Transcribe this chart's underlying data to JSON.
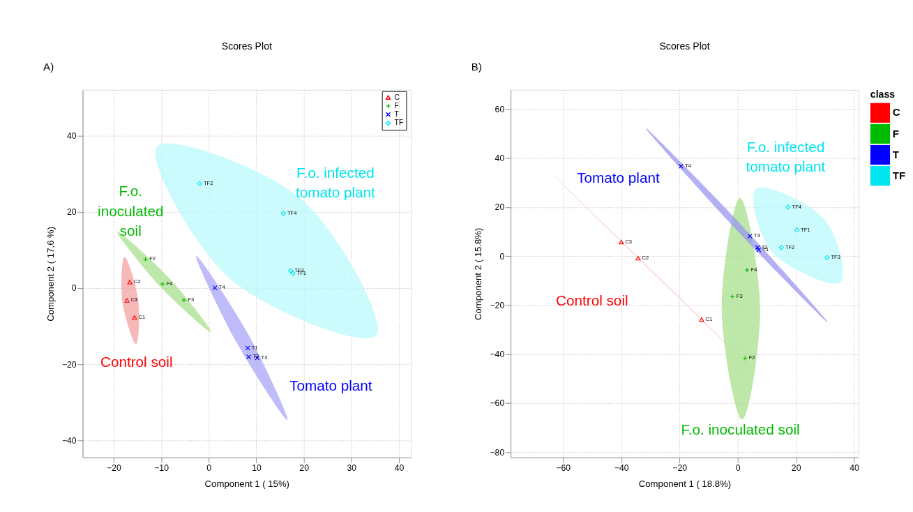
{
  "chart_data": [
    {
      "type": "scatter",
      "title": "Scores Plot",
      "xlabel": "Component 1 ( 15%)",
      "ylabel": "Component 2 ( 17.6 %)",
      "xlim": [
        -26.5,
        42.5
      ],
      "ylim": [
        -44.4,
        52
      ],
      "xticks": [
        -20,
        -10,
        0,
        10,
        20,
        30,
        40
      ],
      "yticks": [
        -40,
        -20,
        0,
        20,
        40
      ],
      "grid": true,
      "legend": "top right",
      "series": [
        {
          "type": "area",
          "color": "#f4a0a0",
          "x": [
            -17.7,
            -14.9,
            -15.3,
            -18.1
          ],
          "values": [
            8.1,
            -3.0,
            -14.6,
            -3.5
          ]
        },
        {
          "type": "area",
          "color": "#a8e08c",
          "x": [
            -19.2,
            -8.5,
            0.4,
            -10.3
          ],
          "values": [
            14.8,
            2.8,
            -11.4,
            0.6
          ]
        },
        {
          "type": "area",
          "color": "#a9a6f7",
          "x": [
            -2.6,
            8.25,
            16.5,
            5.75
          ],
          "values": [
            8.4,
            -12.1,
            -34.5,
            -13.9
          ]
        },
        {
          "type": "area",
          "color": "#b9f9fb",
          "x": [
            -10.8,
            19.5,
            35.1,
            4.8
          ],
          "values": [
            37.1,
            23.2,
            -12.4,
            2.2
          ]
        },
        {
          "name": "C",
          "marker": "triangle",
          "color": "#ff0000",
          "x": [
            -15.6,
            -16.6,
            -17.2
          ],
          "values": [
            -7.7,
            1.6,
            -3.2
          ]
        },
        {
          "name": "F",
          "marker": "cross",
          "color": "#00bb00",
          "x": [
            -13.3,
            -5.2,
            -9.7
          ],
          "values": [
            7.6,
            -3.1,
            1.1
          ]
        },
        {
          "name": "T",
          "marker": "x",
          "color": "#0000ff",
          "x": [
            8.2,
            8.4,
            10.2,
            1.3
          ],
          "values": [
            -15.7,
            -18.0,
            -18.3,
            0.1
          ]
        },
        {
          "name": "TF",
          "marker": "diamond",
          "color": "#00e5ee",
          "x": [
            17.7,
            -1.9,
            17.2,
            15.7
          ],
          "values": [
            3.9,
            27.4,
            4.6,
            19.6
          ]
        }
      ],
      "annotations": [
        "A)",
        {
          "text": "C1",
          "x": -15.6,
          "y": -7.7
        },
        {
          "text": "C2",
          "x": -16.6,
          "y": 1.6
        },
        {
          "text": "C3",
          "x": -17.2,
          "y": -3.2
        },
        {
          "text": "F2",
          "x": -13.3,
          "y": 7.6
        },
        {
          "text": "F3",
          "x": -5.2,
          "y": -3.1
        },
        {
          "text": "F4",
          "x": -9.7,
          "y": 1.1
        },
        {
          "text": "T1",
          "x": 8.2,
          "y": -15.7
        },
        {
          "text": "T2",
          "x": 8.4,
          "y": -18.0
        },
        {
          "text": "T3",
          "x": 10.2,
          "y": -18.3
        },
        {
          "text": "T4",
          "x": 1.3,
          "y": 0.1
        },
        {
          "text": "TF1",
          "x": 17.7,
          "y": 3.9
        },
        {
          "text": "TF2",
          "x": -1.9,
          "y": 27.4
        },
        {
          "text": "TF3",
          "x": 17.2,
          "y": 4.6
        },
        {
          "text": "TF4",
          "x": 15.7,
          "y": 19.6
        },
        "Control soil",
        "F.o.\ninoculated\nsoil",
        "Tomato plant",
        "F.o. infected\ntomato plant"
      ]
    },
    {
      "type": "scatter",
      "title": "Scores Plot",
      "xlabel": "Component 1 ( 18.8%)",
      "ylabel": "Component 2 ( 15.8%)",
      "xlim": [
        -78,
        41.5
      ],
      "ylim": [
        -82.1,
        67.9
      ],
      "xticks": [
        -60,
        -40,
        -20,
        0,
        20,
        40
      ],
      "yticks": [
        -80,
        -60,
        -40,
        -20,
        0,
        20,
        40,
        60
      ],
      "grid": true,
      "legend": "top right",
      "legend_title": "class",
      "series": [
        {
          "type": "area",
          "color": "#fbdcdc",
          "x": [
            -63.5,
            -29.1,
            5.0,
            -29.5
          ],
          "values": [
            33.2,
            -6.1,
            -45.9,
            -6.5
          ]
        },
        {
          "type": "area",
          "color": "#a8e08c",
          "x": [
            0.8,
            7.6,
            1.5,
            -5.4
          ],
          "values": [
            23.7,
            -21.4,
            -66.5,
            -21.4
          ]
        },
        {
          "type": "area",
          "color": "#b9f9fb",
          "x": [
            6.5,
            29.6,
            35.0,
            12.0
          ],
          "values": [
            27.6,
            15.2,
            -10.7,
            1.6
          ]
        },
        {
          "type": "area",
          "color": "#9a96f0",
          "x": [
            -31.5,
            0.5,
            30.8,
            -1.3
          ],
          "values": [
            52.2,
            13.6,
            -26.8,
            12.0
          ]
        },
        {
          "name": "C",
          "marker": "triangle",
          "color": "#ff0000",
          "x": [
            -12.4,
            -34.2,
            -40.0
          ],
          "values": [
            -25.8,
            -0.8,
            5.8
          ]
        },
        {
          "name": "F",
          "marker": "cross",
          "color": "#00bb00",
          "x": [
            2.5,
            -1.8,
            3.2
          ],
          "values": [
            -41.6,
            -16.5,
            -5.6
          ]
        },
        {
          "name": "T",
          "marker": "x",
          "color": "#0000ff",
          "x": [
            7.2,
            6.8,
            4.2,
            -19.5
          ],
          "values": [
            2.6,
            3.6,
            8.2,
            36.7
          ]
        },
        {
          "name": "TF",
          "marker": "diamond",
          "color": "#00e5ee",
          "x": [
            20.3,
            15.0,
            30.7,
            17.3
          ],
          "values": [
            10.7,
            3.6,
            -0.5,
            20.1
          ]
        }
      ],
      "annotations": [
        "B)",
        {
          "text": "C1",
          "x": -12.4,
          "y": -25.8
        },
        {
          "text": "C2",
          "x": -34.2,
          "y": -0.8
        },
        {
          "text": "C3",
          "x": -40.0,
          "y": 5.8
        },
        {
          "text": "F2",
          "x": 2.5,
          "y": -41.6
        },
        {
          "text": "F3",
          "x": -1.8,
          "y": -16.5
        },
        {
          "text": "F4",
          "x": 3.2,
          "y": -5.6
        },
        {
          "text": "T1",
          "x": 7.2,
          "y": 2.6
        },
        {
          "text": "T2",
          "x": 6.8,
          "y": 3.6
        },
        {
          "text": "T3",
          "x": 4.2,
          "y": 8.2
        },
        {
          "text": "T4",
          "x": -19.5,
          "y": 36.7
        },
        {
          "text": "TF1",
          "x": 20.3,
          "y": 10.7
        },
        {
          "text": "TF2",
          "x": 15.0,
          "y": 3.6
        },
        {
          "text": "TF3",
          "x": 30.7,
          "y": -0.5
        },
        {
          "text": "TF4",
          "x": 17.3,
          "y": 20.1
        },
        "Control soil",
        "F.o. inoculated soil",
        "Tomato plant",
        "F.o. infected\ntomato plant"
      ]
    }
  ]
}
